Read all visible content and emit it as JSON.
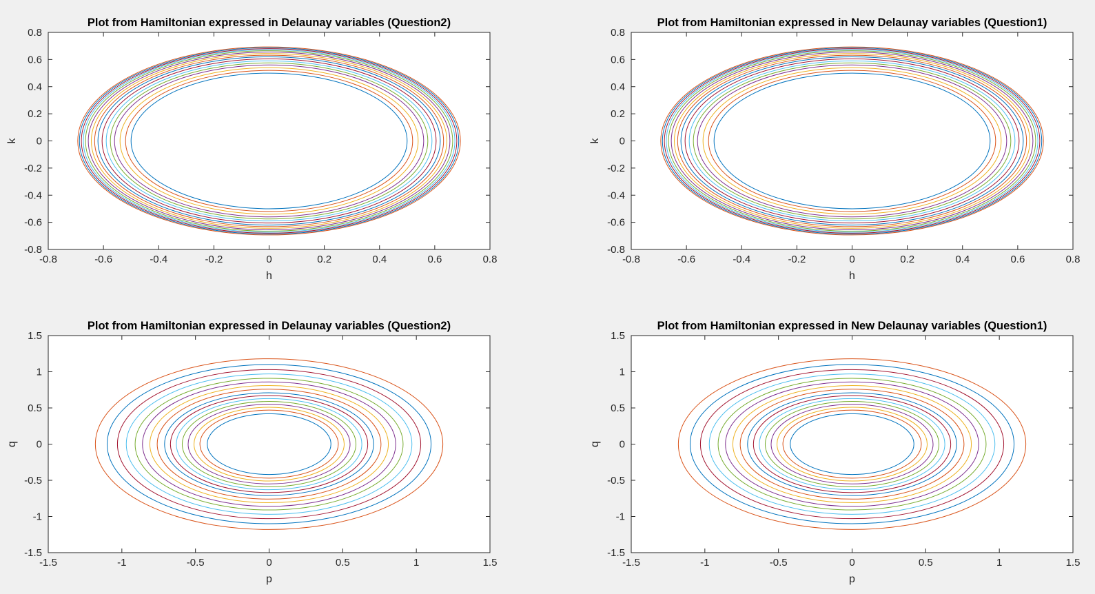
{
  "figure": {
    "background": "#f0f0f0",
    "axes_background": "#ffffff"
  },
  "line_colors": [
    "#0072BD",
    "#D95319",
    "#EDB120",
    "#7E2F8E",
    "#77AC30",
    "#4DBEEE",
    "#A2142F"
  ],
  "chart_data": [
    {
      "type": "line",
      "title": "Plot from Hamiltonian expressed in Delaunay variables (Question2)",
      "xlabel": "h",
      "ylabel": "k",
      "xlim": [
        -0.8,
        0.8
      ],
      "ylim": [
        -0.8,
        0.8
      ],
      "xticks": [
        -0.8,
        -0.6,
        -0.4,
        -0.2,
        0,
        0.2,
        0.4,
        0.6,
        0.8
      ],
      "yticks": [
        -0.8,
        -0.6,
        -0.4,
        -0.2,
        0,
        0.2,
        0.4,
        0.6,
        0.8
      ],
      "xticklabels": [
        "-0.8",
        "-0.6",
        "-0.4",
        "-0.2",
        "0",
        "0.2",
        "0.4",
        "0.6",
        "0.8"
      ],
      "yticklabels": [
        "-0.8",
        "-0.6",
        "-0.4",
        "-0.2",
        "0",
        "0.2",
        "0.4",
        "0.6",
        "0.8"
      ],
      "grid": false,
      "curves": "closed level curves centred at (0,0)",
      "radii": [
        0.5,
        0.52,
        0.54,
        0.56,
        0.575,
        0.59,
        0.605,
        0.62,
        0.632,
        0.644,
        0.655,
        0.665,
        0.673,
        0.68,
        0.687,
        0.693
      ]
    },
    {
      "type": "line",
      "title": "Plot from Hamiltonian expressed in New Delaunay variables (Question1)",
      "xlabel": "h",
      "ylabel": "k",
      "xlim": [
        -0.8,
        0.8
      ],
      "ylim": [
        -0.8,
        0.8
      ],
      "xticks": [
        -0.8,
        -0.6,
        -0.4,
        -0.2,
        0,
        0.2,
        0.4,
        0.6,
        0.8
      ],
      "yticks": [
        -0.8,
        -0.6,
        -0.4,
        -0.2,
        0,
        0.2,
        0.4,
        0.6,
        0.8
      ],
      "xticklabels": [
        "-0.8",
        "-0.6",
        "-0.4",
        "-0.2",
        "0",
        "0.2",
        "0.4",
        "0.6",
        "0.8"
      ],
      "yticklabels": [
        "-0.8",
        "-0.6",
        "-0.4",
        "-0.2",
        "0",
        "0.2",
        "0.4",
        "0.6",
        "0.8"
      ],
      "grid": false,
      "curves": "closed level curves centred at (0,0)",
      "radii": [
        0.5,
        0.52,
        0.54,
        0.56,
        0.575,
        0.59,
        0.605,
        0.62,
        0.632,
        0.644,
        0.655,
        0.665,
        0.673,
        0.68,
        0.687,
        0.693
      ]
    },
    {
      "type": "line",
      "title": "Plot from Hamiltonian expressed in Delaunay variables (Question2)",
      "xlabel": "p",
      "ylabel": "q",
      "xlim": [
        -1.5,
        1.5
      ],
      "ylim": [
        -1.5,
        1.5
      ],
      "xticks": [
        -1.5,
        -1,
        -0.5,
        0,
        0.5,
        1,
        1.5
      ],
      "yticks": [
        -1.5,
        -1,
        -0.5,
        0,
        0.5,
        1,
        1.5
      ],
      "xticklabels": [
        "-1.5",
        "-1",
        "-0.5",
        "0",
        "0.5",
        "1",
        "1.5"
      ],
      "yticklabels": [
        "-1.5",
        "-1",
        "-0.5",
        "0",
        "0.5",
        "1",
        "1.5"
      ],
      "grid": false,
      "curves": "closed level curves centred at (0,0)",
      "radii": [
        0.42,
        0.47,
        0.51,
        0.55,
        0.59,
        0.63,
        0.67,
        0.71,
        0.76,
        0.81,
        0.86,
        0.91,
        0.97,
        1.03,
        1.1,
        1.18
      ]
    },
    {
      "type": "line",
      "title": "Plot from Hamiltonian expressed in New Delaunay variables (Question1)",
      "xlabel": "p",
      "ylabel": "q",
      "xlim": [
        -1.5,
        1.5
      ],
      "ylim": [
        -1.5,
        1.5
      ],
      "xticks": [
        -1.5,
        -1,
        -0.5,
        0,
        0.5,
        1,
        1.5
      ],
      "yticks": [
        -1.5,
        -1,
        -0.5,
        0,
        0.5,
        1,
        1.5
      ],
      "xticklabels": [
        "-1.5",
        "-1",
        "-0.5",
        "0",
        "0.5",
        "1",
        "1.5"
      ],
      "yticklabels": [
        "-1.5",
        "-1",
        "-0.5",
        "0",
        "0.5",
        "1",
        "1.5"
      ],
      "grid": false,
      "curves": "closed level curves centred at (0,0)",
      "radii": [
        0.42,
        0.47,
        0.51,
        0.55,
        0.59,
        0.63,
        0.67,
        0.71,
        0.76,
        0.81,
        0.86,
        0.91,
        0.97,
        1.03,
        1.1,
        1.18
      ]
    }
  ]
}
